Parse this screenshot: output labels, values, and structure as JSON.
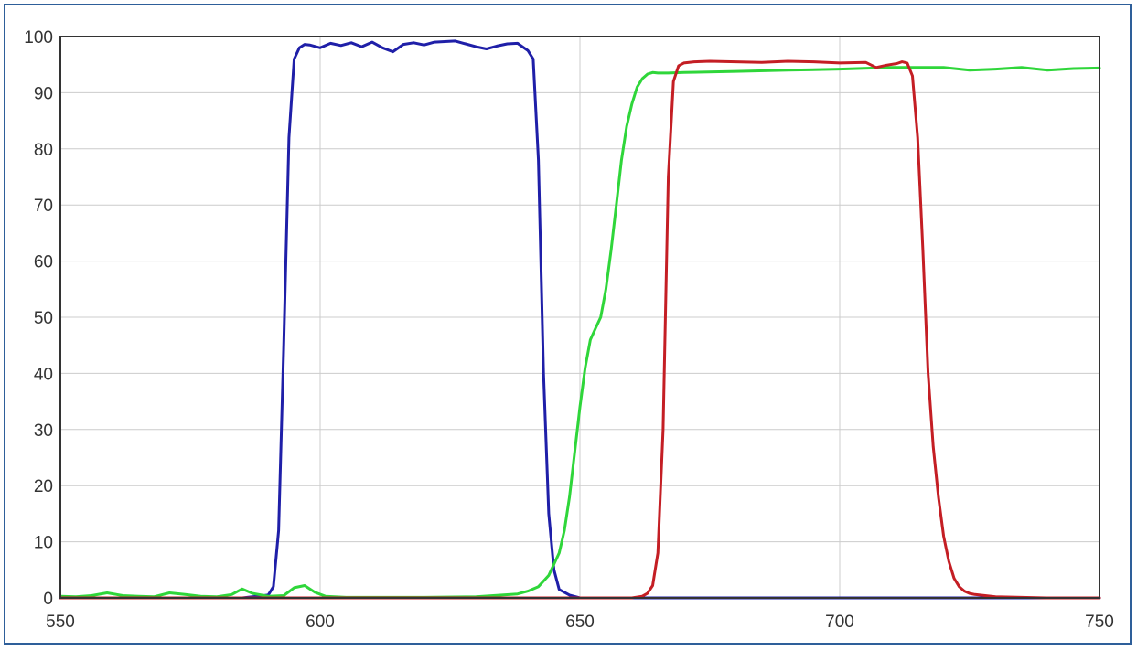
{
  "chart_data": {
    "type": "line",
    "title": "",
    "xlabel": "",
    "ylabel": "",
    "xlim": [
      550,
      750
    ],
    "ylim": [
      0,
      100
    ],
    "x_ticks": [
      550,
      600,
      650,
      700,
      750
    ],
    "y_ticks": [
      0,
      10,
      20,
      30,
      40,
      50,
      60,
      70,
      80,
      90,
      100
    ],
    "grid": true,
    "legend": "none",
    "series": [
      {
        "color": "#1f1fa8",
        "x": [
          550,
          585,
          590,
          591,
          592,
          593,
          594,
          595,
          596,
          597,
          598,
          600,
          602,
          604,
          606,
          608,
          610,
          612,
          614,
          616,
          618,
          620,
          622,
          624,
          626,
          628,
          630,
          632,
          634,
          636,
          638,
          640,
          641,
          642,
          643,
          644,
          645,
          646,
          648,
          650,
          750
        ],
        "y": [
          0,
          0,
          0.5,
          2,
          12,
          45,
          82,
          96,
          98,
          98.6,
          98.5,
          98,
          98.8,
          98.4,
          98.9,
          98.2,
          99,
          98,
          97.3,
          98.6,
          98.9,
          98.5,
          99,
          99.1,
          99.2,
          98.7,
          98.2,
          97.8,
          98.3,
          98.7,
          98.8,
          97.5,
          96,
          78,
          40,
          15,
          5,
          1.5,
          0.5,
          0,
          0
        ]
      },
      {
        "color": "#2fd63a",
        "x": [
          550,
          553,
          556,
          559,
          562,
          565,
          568,
          571,
          574,
          577,
          580,
          583,
          585,
          587,
          590,
          593,
          595,
          597,
          599,
          601,
          605,
          620,
          630,
          638,
          640,
          642,
          644,
          646,
          647,
          648,
          649,
          650,
          651,
          652,
          653,
          654,
          655,
          656,
          657,
          658,
          659,
          660,
          661,
          662,
          663,
          664,
          665,
          667,
          670,
          680,
          690,
          700,
          710,
          720,
          725,
          730,
          735,
          740,
          745,
          750
        ],
        "y": [
          0.3,
          0.2,
          0.4,
          0.9,
          0.4,
          0.3,
          0.2,
          0.9,
          0.6,
          0.3,
          0.2,
          0.6,
          1.6,
          0.8,
          0.3,
          0.4,
          1.8,
          2.2,
          1,
          0.3,
          0.1,
          0.1,
          0.2,
          0.7,
          1.2,
          2,
          4,
          8,
          12,
          18,
          26,
          34,
          41,
          46,
          48,
          50,
          55,
          62,
          70,
          78,
          84,
          88,
          91,
          92.5,
          93.3,
          93.6,
          93.5,
          93.5,
          93.6,
          93.8,
          94,
          94.2,
          94.5,
          94.5,
          94,
          94.2,
          94.5,
          94,
          94.3,
          94.4
        ]
      },
      {
        "color": "#c41e24",
        "x": [
          550,
          660,
          662,
          663,
          664,
          665,
          666,
          667,
          668,
          669,
          670,
          672,
          675,
          680,
          685,
          690,
          695,
          700,
          705,
          707,
          709,
          711,
          712,
          713,
          714,
          715,
          716,
          717,
          718,
          719,
          720,
          721,
          722,
          723,
          724,
          725,
          726,
          728,
          730,
          735,
          740,
          750
        ],
        "y": [
          0,
          0,
          0.3,
          0.8,
          2.2,
          8,
          30,
          75,
          92,
          94.8,
          95.3,
          95.5,
          95.6,
          95.5,
          95.4,
          95.6,
          95.5,
          95.3,
          95.4,
          94.5,
          94.9,
          95.2,
          95.5,
          95.3,
          93,
          82,
          62,
          40,
          27,
          18,
          11,
          6.5,
          3.5,
          2,
          1.2,
          0.8,
          0.6,
          0.4,
          0.2,
          0.1,
          0,
          0
        ]
      }
    ]
  }
}
